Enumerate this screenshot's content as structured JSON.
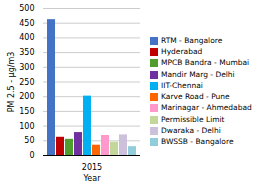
{
  "chart_data": {
    "type": "bar",
    "xlabel": "Year",
    "ylabel": "PM 2.5 - µg/m3",
    "categories": [
      "2015"
    ],
    "series": [
      {
        "name": "RTM - Bangalore",
        "color": "#4472C4",
        "values": [
          462
        ]
      },
      {
        "name": "Hyderabad",
        "color": "#C00000",
        "values": [
          62
        ]
      },
      {
        "name": "MPCB Bandra - Mumbai",
        "color": "#4E9D2D",
        "values": [
          55
        ]
      },
      {
        "name": "Mandir Marg - Delhi",
        "color": "#7030A0",
        "values": [
          78
        ]
      },
      {
        "name": "IIT-Chennai",
        "color": "#00B0F0",
        "values": [
          202
        ]
      },
      {
        "name": "Karve Road - Pune",
        "color": "#FF6600",
        "values": [
          35
        ]
      },
      {
        "name": "Marinagar - Ahmedabad",
        "color": "#FF99CC",
        "values": [
          68
        ]
      },
      {
        "name": "Permissible Limit",
        "color": "#C4D79B",
        "values": [
          45
        ]
      },
      {
        "name": "Dwaraka - Delhi",
        "color": "#CCC0DA",
        "values": [
          70
        ]
      },
      {
        "name": "BWSSB - Bangalore",
        "color": "#92CDDC",
        "values": [
          30
        ]
      }
    ],
    "ylim": [
      0,
      500
    ],
    "yticks": [
      0,
      50,
      100,
      150,
      200,
      250,
      300,
      350,
      400,
      450,
      500
    ],
    "grid": true,
    "legend": "right"
  }
}
